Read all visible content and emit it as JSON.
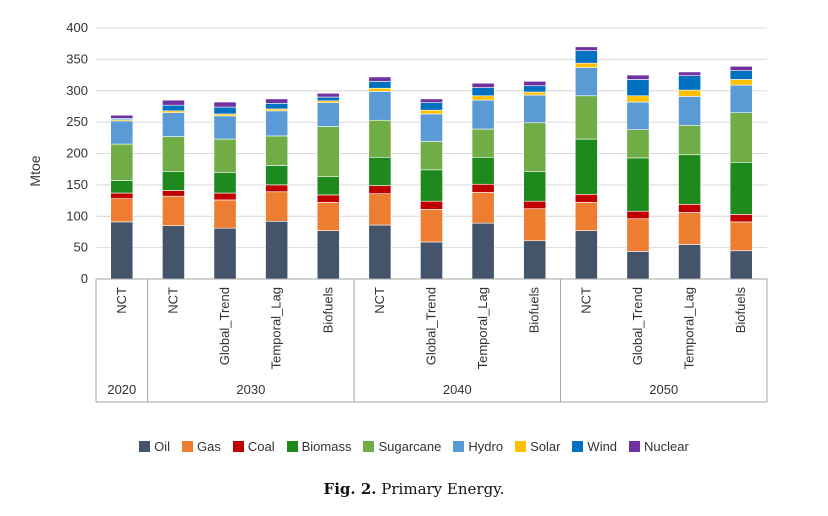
{
  "caption": {
    "label": "Fig. 2.",
    "text": "Primary Energy."
  },
  "chart_data": {
    "type": "bar",
    "stacked": true,
    "ylabel": "Mtoe",
    "ylim": [
      0,
      400
    ],
    "yticks": [
      0,
      50,
      100,
      150,
      200,
      250,
      300,
      350,
      400
    ],
    "legend_position": "bottom",
    "groups": [
      {
        "label": "2020",
        "categories": [
          "NCT"
        ]
      },
      {
        "label": "2030",
        "categories": [
          "NCT",
          "Global_Trend",
          "Temporal_Lag",
          "Biofuels"
        ]
      },
      {
        "label": "2040",
        "categories": [
          "NCT",
          "Global_Trend",
          "Temporal_Lag",
          "Biofuels"
        ]
      },
      {
        "label": "2050",
        "categories": [
          "NCT",
          "Global_Trend",
          "Temporal_Lag",
          "Biofuels"
        ]
      }
    ],
    "series": [
      {
        "name": "Oil",
        "color": "#44546a",
        "values": [
          91,
          85,
          81,
          92,
          77,
          86,
          59,
          89,
          61,
          77,
          44,
          55,
          45
        ]
      },
      {
        "name": "Gas",
        "color": "#ed7d31",
        "values": [
          37,
          47,
          45,
          47,
          45,
          50,
          52,
          49,
          51,
          45,
          52,
          51,
          46
        ]
      },
      {
        "name": "Coal",
        "color": "#c00000",
        "values": [
          9,
          9,
          11,
          11,
          12,
          13,
          13,
          13,
          12,
          13,
          12,
          13,
          12
        ]
      },
      {
        "name": "Biomass",
        "color": "#1e8a1e",
        "values": [
          20,
          30,
          33,
          31,
          29,
          45,
          50,
          43,
          47,
          88,
          85,
          79,
          83
        ]
      },
      {
        "name": "Sugarcane",
        "color": "#70ad47",
        "values": [
          58,
          56,
          53,
          47,
          80,
          59,
          45,
          45,
          78,
          69,
          45,
          47,
          79
        ]
      },
      {
        "name": "Hydro",
        "color": "#5b9bd5",
        "values": [
          37,
          38,
          37,
          40,
          38,
          46,
          44,
          46,
          44,
          45,
          44,
          46,
          44
        ]
      },
      {
        "name": "Solar",
        "color": "#ffc000",
        "values": [
          2,
          3,
          3,
          3,
          3,
          5,
          6,
          7,
          5,
          7,
          10,
          10,
          9
        ]
      },
      {
        "name": "Wind",
        "color": "#0070c0",
        "values": [
          2,
          9,
          11,
          9,
          6,
          11,
          12,
          13,
          10,
          20,
          26,
          23,
          14
        ]
      },
      {
        "name": "Nuclear",
        "color": "#7030a0",
        "values": [
          5,
          8,
          8,
          7,
          6,
          7,
          6,
          7,
          7,
          6,
          7,
          6,
          7
        ]
      }
    ]
  }
}
